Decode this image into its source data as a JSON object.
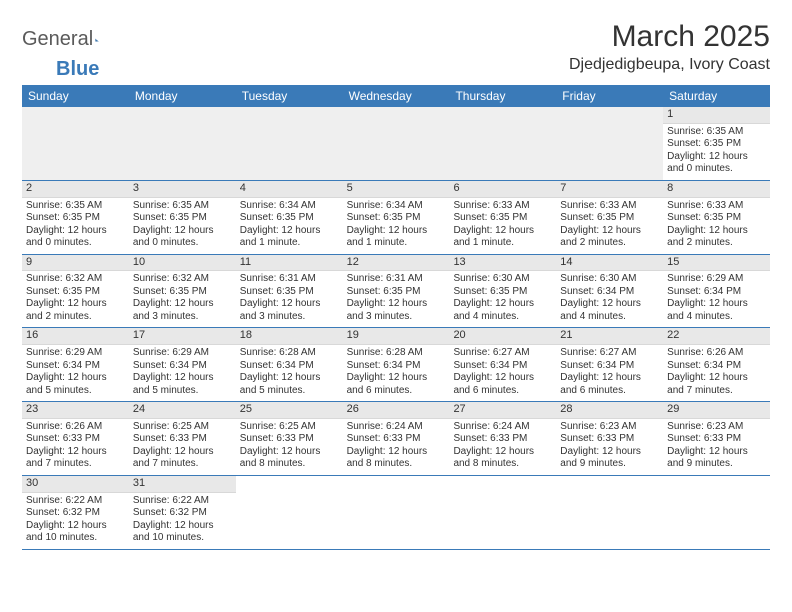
{
  "brand": {
    "part1": "General",
    "part2": "Blue"
  },
  "title": "March 2025",
  "location": "Djedjedigbeupa, Ivory Coast",
  "weekdays": [
    "Sunday",
    "Monday",
    "Tuesday",
    "Wednesday",
    "Thursday",
    "Friday",
    "Saturday"
  ],
  "colors": {
    "header_bg": "#3a7ab8",
    "daynum_bg": "#e8e8e8",
    "row_border": "#3a7ab8",
    "text": "#333333",
    "background": "#ffffff"
  },
  "typography": {
    "title_fontsize": 30,
    "location_fontsize": 16,
    "weekday_fontsize": 12,
    "daynum_fontsize": 11,
    "body_fontsize": 10
  },
  "weeks": [
    [
      null,
      null,
      null,
      null,
      null,
      null,
      {
        "num": "1",
        "sunrise": "Sunrise: 6:35 AM",
        "sunset": "Sunset: 6:35 PM",
        "daylight": "Daylight: 12 hours and 0 minutes."
      }
    ],
    [
      {
        "num": "2",
        "sunrise": "Sunrise: 6:35 AM",
        "sunset": "Sunset: 6:35 PM",
        "daylight": "Daylight: 12 hours and 0 minutes."
      },
      {
        "num": "3",
        "sunrise": "Sunrise: 6:35 AM",
        "sunset": "Sunset: 6:35 PM",
        "daylight": "Daylight: 12 hours and 0 minutes."
      },
      {
        "num": "4",
        "sunrise": "Sunrise: 6:34 AM",
        "sunset": "Sunset: 6:35 PM",
        "daylight": "Daylight: 12 hours and 1 minute."
      },
      {
        "num": "5",
        "sunrise": "Sunrise: 6:34 AM",
        "sunset": "Sunset: 6:35 PM",
        "daylight": "Daylight: 12 hours and 1 minute."
      },
      {
        "num": "6",
        "sunrise": "Sunrise: 6:33 AM",
        "sunset": "Sunset: 6:35 PM",
        "daylight": "Daylight: 12 hours and 1 minute."
      },
      {
        "num": "7",
        "sunrise": "Sunrise: 6:33 AM",
        "sunset": "Sunset: 6:35 PM",
        "daylight": "Daylight: 12 hours and 2 minutes."
      },
      {
        "num": "8",
        "sunrise": "Sunrise: 6:33 AM",
        "sunset": "Sunset: 6:35 PM",
        "daylight": "Daylight: 12 hours and 2 minutes."
      }
    ],
    [
      {
        "num": "9",
        "sunrise": "Sunrise: 6:32 AM",
        "sunset": "Sunset: 6:35 PM",
        "daylight": "Daylight: 12 hours and 2 minutes."
      },
      {
        "num": "10",
        "sunrise": "Sunrise: 6:32 AM",
        "sunset": "Sunset: 6:35 PM",
        "daylight": "Daylight: 12 hours and 3 minutes."
      },
      {
        "num": "11",
        "sunrise": "Sunrise: 6:31 AM",
        "sunset": "Sunset: 6:35 PM",
        "daylight": "Daylight: 12 hours and 3 minutes."
      },
      {
        "num": "12",
        "sunrise": "Sunrise: 6:31 AM",
        "sunset": "Sunset: 6:35 PM",
        "daylight": "Daylight: 12 hours and 3 minutes."
      },
      {
        "num": "13",
        "sunrise": "Sunrise: 6:30 AM",
        "sunset": "Sunset: 6:35 PM",
        "daylight": "Daylight: 12 hours and 4 minutes."
      },
      {
        "num": "14",
        "sunrise": "Sunrise: 6:30 AM",
        "sunset": "Sunset: 6:34 PM",
        "daylight": "Daylight: 12 hours and 4 minutes."
      },
      {
        "num": "15",
        "sunrise": "Sunrise: 6:29 AM",
        "sunset": "Sunset: 6:34 PM",
        "daylight": "Daylight: 12 hours and 4 minutes."
      }
    ],
    [
      {
        "num": "16",
        "sunrise": "Sunrise: 6:29 AM",
        "sunset": "Sunset: 6:34 PM",
        "daylight": "Daylight: 12 hours and 5 minutes."
      },
      {
        "num": "17",
        "sunrise": "Sunrise: 6:29 AM",
        "sunset": "Sunset: 6:34 PM",
        "daylight": "Daylight: 12 hours and 5 minutes."
      },
      {
        "num": "18",
        "sunrise": "Sunrise: 6:28 AM",
        "sunset": "Sunset: 6:34 PM",
        "daylight": "Daylight: 12 hours and 5 minutes."
      },
      {
        "num": "19",
        "sunrise": "Sunrise: 6:28 AM",
        "sunset": "Sunset: 6:34 PM",
        "daylight": "Daylight: 12 hours and 6 minutes."
      },
      {
        "num": "20",
        "sunrise": "Sunrise: 6:27 AM",
        "sunset": "Sunset: 6:34 PM",
        "daylight": "Daylight: 12 hours and 6 minutes."
      },
      {
        "num": "21",
        "sunrise": "Sunrise: 6:27 AM",
        "sunset": "Sunset: 6:34 PM",
        "daylight": "Daylight: 12 hours and 6 minutes."
      },
      {
        "num": "22",
        "sunrise": "Sunrise: 6:26 AM",
        "sunset": "Sunset: 6:34 PM",
        "daylight": "Daylight: 12 hours and 7 minutes."
      }
    ],
    [
      {
        "num": "23",
        "sunrise": "Sunrise: 6:26 AM",
        "sunset": "Sunset: 6:33 PM",
        "daylight": "Daylight: 12 hours and 7 minutes."
      },
      {
        "num": "24",
        "sunrise": "Sunrise: 6:25 AM",
        "sunset": "Sunset: 6:33 PM",
        "daylight": "Daylight: 12 hours and 7 minutes."
      },
      {
        "num": "25",
        "sunrise": "Sunrise: 6:25 AM",
        "sunset": "Sunset: 6:33 PM",
        "daylight": "Daylight: 12 hours and 8 minutes."
      },
      {
        "num": "26",
        "sunrise": "Sunrise: 6:24 AM",
        "sunset": "Sunset: 6:33 PM",
        "daylight": "Daylight: 12 hours and 8 minutes."
      },
      {
        "num": "27",
        "sunrise": "Sunrise: 6:24 AM",
        "sunset": "Sunset: 6:33 PM",
        "daylight": "Daylight: 12 hours and 8 minutes."
      },
      {
        "num": "28",
        "sunrise": "Sunrise: 6:23 AM",
        "sunset": "Sunset: 6:33 PM",
        "daylight": "Daylight: 12 hours and 9 minutes."
      },
      {
        "num": "29",
        "sunrise": "Sunrise: 6:23 AM",
        "sunset": "Sunset: 6:33 PM",
        "daylight": "Daylight: 12 hours and 9 minutes."
      }
    ],
    [
      {
        "num": "30",
        "sunrise": "Sunrise: 6:22 AM",
        "sunset": "Sunset: 6:32 PM",
        "daylight": "Daylight: 12 hours and 10 minutes."
      },
      {
        "num": "31",
        "sunrise": "Sunrise: 6:22 AM",
        "sunset": "Sunset: 6:32 PM",
        "daylight": "Daylight: 12 hours and 10 minutes."
      },
      null,
      null,
      null,
      null,
      null
    ]
  ]
}
